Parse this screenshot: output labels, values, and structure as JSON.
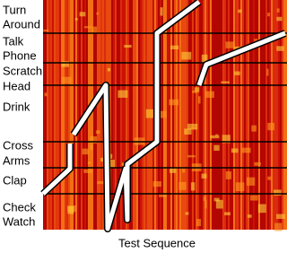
{
  "row_labels": [
    [
      "Turn",
      "Around"
    ],
    [
      "Talk",
      "Phone"
    ],
    [
      "Scratch",
      "Head"
    ],
    [
      "Drink"
    ],
    [
      "Cross",
      "Arms"
    ],
    [
      "Clap"
    ],
    [
      "Check",
      "Watch"
    ]
  ],
  "x_label": "Test Sequence"
}
